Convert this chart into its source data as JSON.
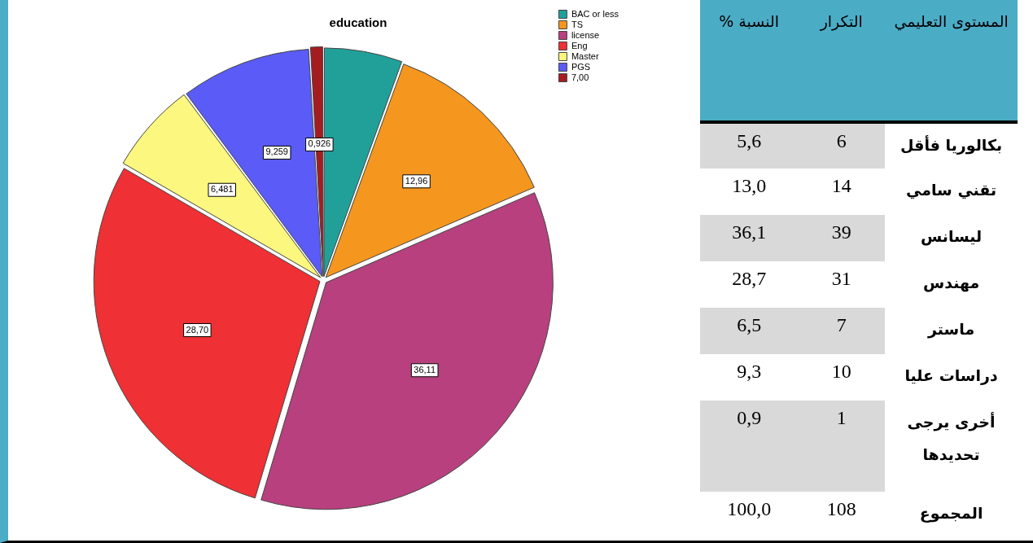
{
  "chart_data": [
    {
      "type": "pie",
      "title": "education",
      "categories": [
        "BAC or less",
        "TS",
        "license",
        "Eng",
        "Master",
        "PGS",
        "7,00"
      ],
      "values": [
        5.556,
        12.96,
        36.11,
        28.7,
        6.481,
        9.259,
        0.926
      ],
      "colors": [
        "#21a09a",
        "#f5961e",
        "#b8407e",
        "#ef3034",
        "#fbf77f",
        "#5b5bf7",
        "#a51c20"
      ],
      "value_labels": [
        null,
        "12,96",
        "36,11",
        "28,70",
        "6,481",
        "9,259",
        "0,926"
      ],
      "legend": "top right"
    },
    {
      "type": "other",
      "annotations": [
        "المستوى التعليمي",
        "التكرار",
        "النسبة %",
        "بكالوريا فأقل",
        "6",
        "5,6",
        "تقني سامي",
        "14",
        "13,0",
        "ليسانس",
        "39",
        "36,1",
        "مهندس",
        "31",
        "28,7",
        "ماستر",
        "7",
        "6,5",
        "دراسات عليا",
        "10",
        "9,3",
        "أخرى يرجى تحديدها",
        "1",
        "0,9",
        "المجموع",
        "108",
        "100,0"
      ]
    }
  ]
}
